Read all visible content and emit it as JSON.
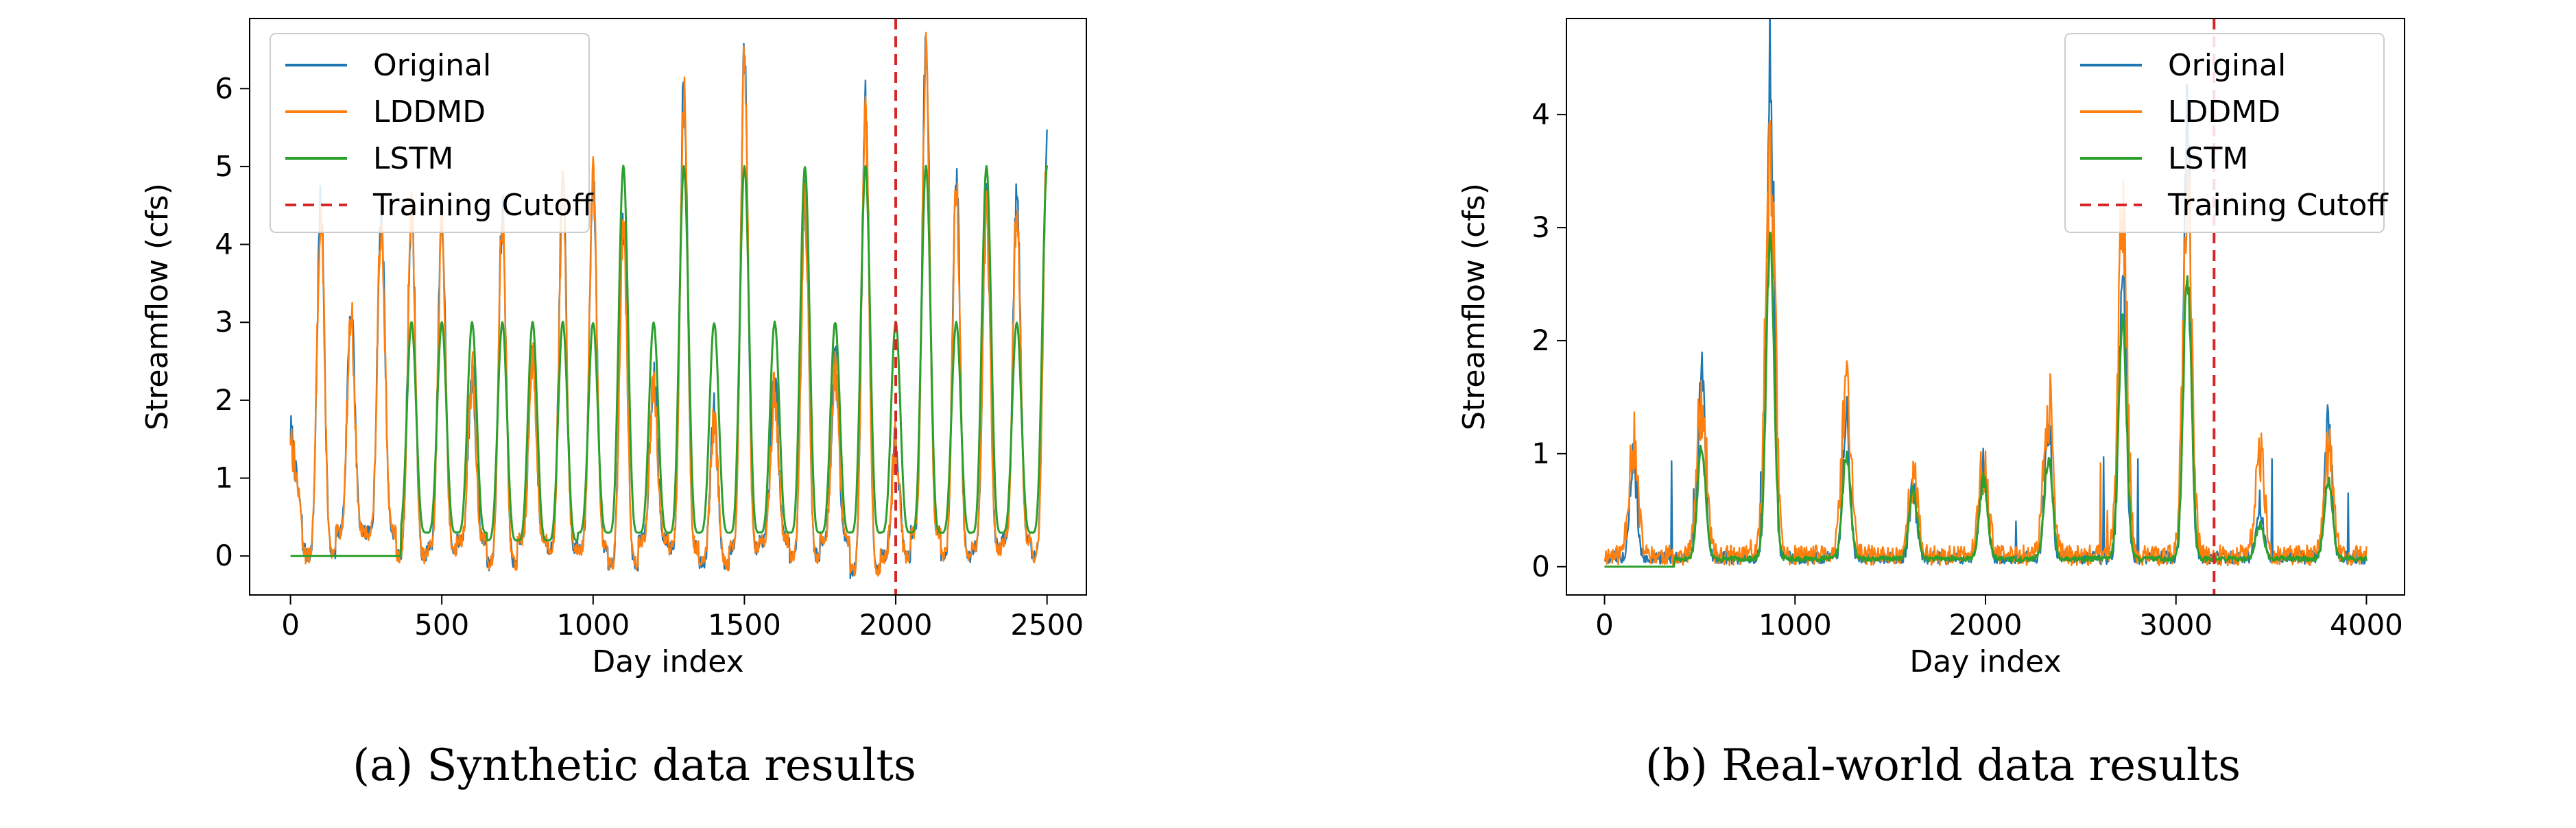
{
  "figure": {
    "captions": [
      "(a) Synthetic data results",
      "(b) Real-world data results"
    ]
  },
  "legend": {
    "entries": [
      {
        "label": "Original",
        "color": "#1f77b4",
        "style": "solid"
      },
      {
        "label": "LDDMD",
        "color": "#ff7f0e",
        "style": "solid"
      },
      {
        "label": "LSTM",
        "color": "#2ca02c",
        "style": "solid"
      },
      {
        "label": "Training Cutoff",
        "color": "#d62728",
        "style": "dashed"
      }
    ]
  },
  "chart_data": [
    {
      "type": "line",
      "xlabel": "Day index",
      "ylabel": "Streamflow (cfs)",
      "xlim": [
        -135,
        2630
      ],
      "ylim": [
        -0.5,
        6.9
      ],
      "xticks": [
        0,
        500,
        1000,
        1500,
        2000,
        2500
      ],
      "yticks": [
        0,
        1,
        2,
        3,
        4,
        5,
        6
      ],
      "cutoff_x": 2000,
      "legend_position": "upper-left",
      "peaks": {
        "day": [
          0,
          100,
          200,
          300,
          400,
          500,
          600,
          700,
          800,
          900,
          1000,
          1100,
          1200,
          1300,
          1400,
          1500,
          1600,
          1700,
          1800,
          1900,
          2000,
          2100,
          2200,
          2300,
          2400,
          2500
        ],
        "original": [
          1.9,
          4.5,
          3.2,
          4.4,
          4.5,
          4.3,
          2.3,
          4.4,
          2.6,
          4.8,
          4.9,
          4.3,
          2.3,
          6.1,
          1.8,
          6.4,
          2.2,
          4.6,
          2.5,
          5.8,
          1.5,
          6.6,
          4.9,
          4.5,
          4.6,
          5.4
        ],
        "lddmd": [
          1.8,
          4.4,
          3.1,
          4.3,
          4.4,
          4.2,
          2.3,
          4.3,
          2.5,
          4.7,
          4.8,
          4.2,
          2.3,
          5.9,
          1.7,
          6.3,
          2.1,
          4.5,
          2.4,
          5.6,
          1.4,
          6.4,
          4.7,
          4.4,
          4.5,
          5.2
        ],
        "lstm": [
          0.0,
          0.0,
          0.0,
          0.0,
          3.0,
          3.0,
          3.0,
          3.0,
          3.0,
          3.0,
          3.0,
          5.0,
          3.0,
          5.0,
          3.0,
          5.0,
          3.0,
          5.0,
          3.0,
          5.0,
          3.0,
          5.0,
          3.0,
          5.0,
          3.0,
          5.0
        ],
        "troughs_original": [
          0.1,
          0.0,
          0.3,
          0.3,
          0.0,
          0.1,
          0.2,
          -0.1,
          0.2,
          0.1,
          0.1,
          -0.1,
          0.2,
          0.1,
          -0.1,
          0.1,
          0.2,
          0.0,
          0.2,
          -0.2,
          0.0,
          0.3,
          0.0,
          0.1,
          0.2,
          0.0
        ],
        "troughs_lstm": [
          0.0,
          0.0,
          0.0,
          0.0,
          0.3,
          0.3,
          0.3,
          0.2,
          0.2,
          0.2,
          0.3,
          0.3,
          0.3,
          0.3,
          0.3,
          0.3,
          0.3,
          0.3,
          0.3,
          0.3,
          0.3,
          0.3,
          0.3,
          0.3,
          0.3,
          0.3
        ]
      }
    },
    {
      "type": "line",
      "xlabel": "Day index",
      "ylabel": "Streamflow (cfs)",
      "xlim": [
        -200,
        4200
      ],
      "ylim": [
        -0.25,
        4.85
      ],
      "xticks": [
        0,
        1000,
        2000,
        3000,
        4000
      ],
      "yticks": [
        0,
        1,
        2,
        3,
        4
      ],
      "cutoff_x": 3200,
      "legend_position": "upper-right",
      "events": {
        "day": [
          150,
          510,
          870,
          1270,
          1620,
          1990,
          2330,
          2720,
          3060,
          3440,
          3800
        ],
        "original": [
          0.9,
          1.8,
          4.6,
          1.3,
          0.6,
          0.8,
          1.2,
          2.6,
          3.8,
          0.5,
          1.2
        ],
        "lddmd": [
          1.0,
          1.4,
          3.8,
          1.5,
          0.7,
          0.8,
          1.4,
          2.9,
          3.0,
          0.9,
          0.9
        ],
        "lstm": [
          0.0,
          1.0,
          2.8,
          0.9,
          0.6,
          0.7,
          0.9,
          2.1,
          2.5,
          0.3,
          0.7
        ]
      }
    }
  ]
}
